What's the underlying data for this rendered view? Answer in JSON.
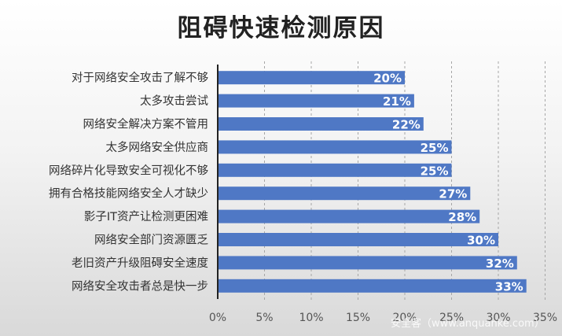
{
  "chart_data": {
    "type": "bar",
    "orientation": "horizontal",
    "title": "阻碍快速检测原因",
    "categories": [
      "对于网络安全攻击了解不够",
      "太多攻击尝试",
      "网络安全解决方案不管用",
      "太多网络安全供应商",
      "网络碎片化导致安全可视化不够",
      "拥有合格技能网络安全人才缺少",
      "影子IT资产让检测更困难",
      "网络安全部门资源匮乏",
      "老旧资产升级阻碍安全速度",
      "网络安全攻击者总是快一步"
    ],
    "values": [
      20,
      21,
      22,
      25,
      25,
      27,
      28,
      30,
      32,
      33
    ],
    "data_labels": [
      "20%",
      "21%",
      "22%",
      "25%",
      "25%",
      "27%",
      "28%",
      "30%",
      "32%",
      "33%"
    ],
    "xlim": [
      0,
      35
    ],
    "x_ticks": [
      "0%",
      "5%",
      "10%",
      "15%",
      "20%",
      "25%",
      "30%",
      "35%"
    ],
    "grid": "vertical-dashed",
    "bar_color": "#4f78c5",
    "xlabel": "",
    "ylabel": ""
  },
  "watermark": "安全客（www.anquanke.com）"
}
